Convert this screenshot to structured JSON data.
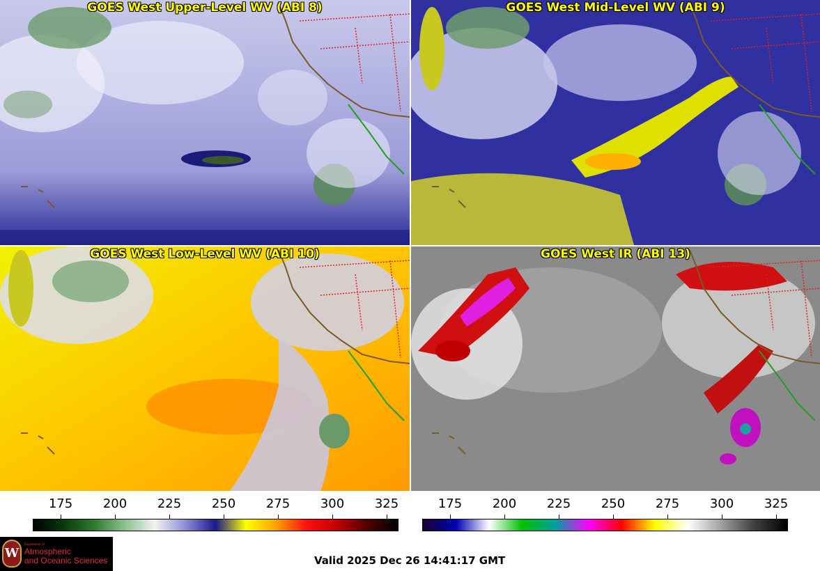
{
  "panels": [
    {
      "title": "GOES West Upper-Level WV (ABI 8)",
      "colorbar": "wv"
    },
    {
      "title": "GOES West Mid-Level WV (ABI 9)",
      "colorbar": "wv"
    },
    {
      "title": "GOES West Low-Level WV (ABI 10)",
      "colorbar": "wv"
    },
    {
      "title": "GOES West IR (ABI 13)",
      "colorbar": "ir"
    }
  ],
  "colorbars": {
    "wv": {
      "ticks": [
        "175",
        "200",
        "225",
        "250",
        "275",
        "300",
        "325"
      ],
      "colors": [
        "#000000",
        "#0a3a0a",
        "#2e7a2e",
        "#8cc08c",
        "#f2f2f2",
        "#8e8ed6",
        "#1a1a8a",
        "#ffff00",
        "#ffa000",
        "#ff1010",
        "#c00000",
        "#500000",
        "#000000"
      ]
    },
    "ir": {
      "ticks": [
        "175",
        "200",
        "225",
        "250",
        "275",
        "300",
        "325"
      ],
      "colors": [
        "#1a0030",
        "#0000b0",
        "#ffffff",
        "#00c000",
        "#00a0a0",
        "#ff00ff",
        "#ff0000",
        "#ffff00",
        "#ffffff",
        "#a0a0a0",
        "#404040",
        "#000000"
      ]
    }
  },
  "logo": {
    "initial": "W",
    "dept": "Department of",
    "line1": "Atmospheric",
    "line2": "and Oceanic Sciences"
  },
  "footer": {
    "valid": "Valid 2025 Dec 26 14:41:17 GMT"
  }
}
